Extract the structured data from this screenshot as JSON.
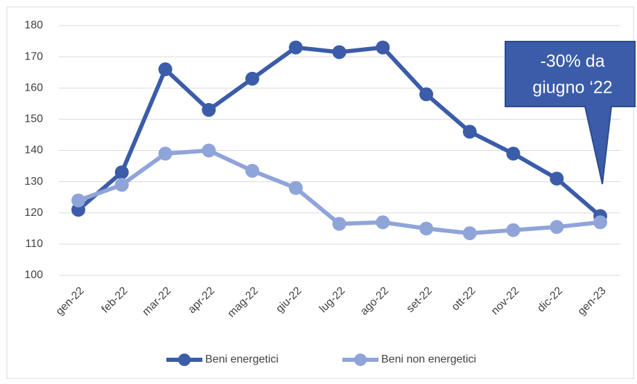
{
  "chart_data": {
    "type": "line",
    "categories": [
      "gen-22",
      "feb-22",
      "mar-22",
      "apr-22",
      "mag-22",
      "giu-22",
      "lug-22",
      "ago-22",
      "set-22",
      "ott-22",
      "nov-22",
      "dic-22",
      "gen-23"
    ],
    "series": [
      {
        "name": "Beni energetici",
        "color": "#3b5ca8",
        "values": [
          121,
          133,
          166,
          153,
          163,
          173,
          171.5,
          173,
          158,
          146,
          139,
          131,
          119
        ]
      },
      {
        "name": "Beni non energetici",
        "color": "#8fa4d9",
        "values": [
          124,
          129,
          139,
          140,
          133.5,
          128,
          116.5,
          117,
          115,
          113.5,
          114.5,
          115.5,
          117
        ]
      }
    ],
    "ylim": [
      100,
      180
    ],
    "yticks": [
      100,
      110,
      120,
      130,
      140,
      150,
      160,
      170,
      180
    ],
    "grid": true,
    "legend": "bottom",
    "annotation": [
      "-30% da",
      "giugno ‘22"
    ]
  }
}
